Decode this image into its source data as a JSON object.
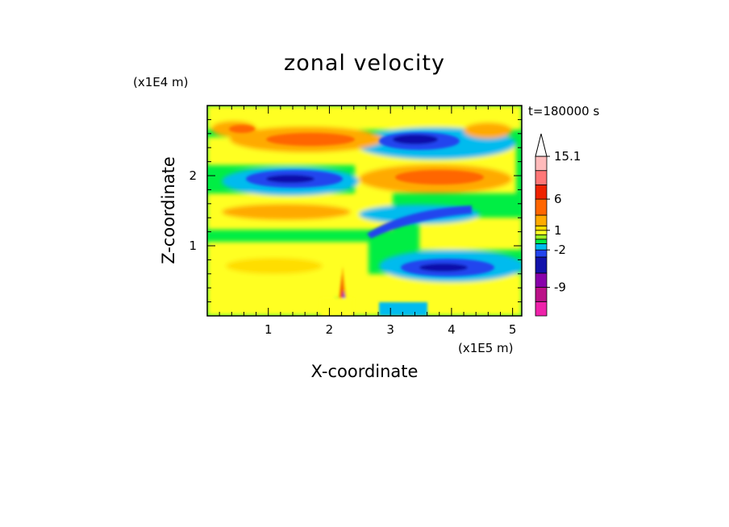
{
  "chart_data": {
    "type": "heatmap",
    "title": "zonal velocity",
    "xlabel": "X-coordinate",
    "ylabel": "Z-coordinate",
    "x_multiplier": "(x1E5 m)",
    "y_multiplier": "(x1E4 m)",
    "time_label": "t=180000 s",
    "xlim": [
      0,
      5.15
    ],
    "ylim": [
      0,
      3.0
    ],
    "xticks": [
      1,
      2,
      3,
      4,
      5
    ],
    "yticks": [
      1,
      2
    ],
    "colorbar": {
      "levels": [
        -15,
        -12,
        -9,
        -6,
        -4,
        -2,
        -1,
        0,
        0.5,
        1,
        2,
        4,
        6,
        9,
        12,
        15.1
      ],
      "tick_labels": [
        {
          "value": "15.1",
          "level_index": 15
        },
        {
          "value": "6",
          "level_index": 12
        },
        {
          "value": "1",
          "level_index": 9
        },
        {
          "value": "-2",
          "level_index": 5
        },
        {
          "value": "-9",
          "level_index": 2
        }
      ],
      "colors": [
        "#ee22aa",
        "#bb1188",
        "#8800aa",
        "#1111aa",
        "#2244ee",
        "#00bbee",
        "#00ee44",
        "#99ee22",
        "#ffff22",
        "#ffdd00",
        "#ffaa00",
        "#ff6600",
        "#ee2200",
        "#ff7777",
        "#ffbbbb"
      ],
      "extend": "top-arrow"
    },
    "bands": [
      {
        "z": 0.15,
        "label": "yellow near ground"
      },
      {
        "z": 0.7,
        "x": [
          0.5,
          2.0
        ],
        "sign": "positive-weak"
      },
      {
        "z": 0.75,
        "x": [
          2.9,
          4.5
        ],
        "sign": "negative-strong"
      },
      {
        "z": 1.4,
        "x": [
          2.5,
          4.2
        ],
        "sign": "negative-strong"
      },
      {
        "z": 1.5,
        "x": [
          0.2,
          2.3
        ],
        "sign": "positive-moderate"
      },
      {
        "z": 2.0,
        "x": [
          0.4,
          2.0
        ],
        "sign": "negative-strong"
      },
      {
        "z": 2.0,
        "x": [
          2.3,
          4.6
        ],
        "sign": "positive-moderate"
      },
      {
        "z": 2.5,
        "x": [
          0.2,
          2.3
        ],
        "sign": "positive-moderate"
      },
      {
        "z": 2.5,
        "x": [
          2.8,
          4.7
        ],
        "sign": "negative-strong"
      }
    ]
  }
}
